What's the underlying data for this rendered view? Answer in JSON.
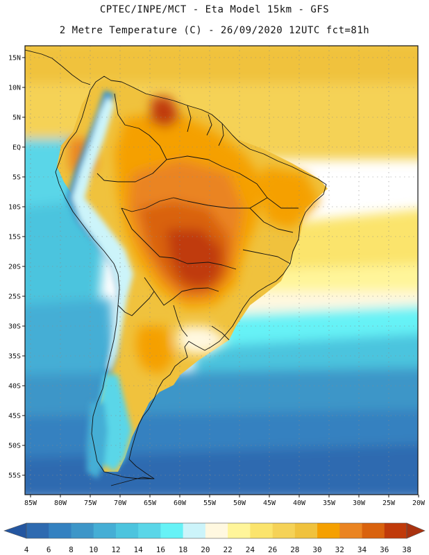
{
  "header": {
    "line1": "CPTEC/INPE/MCT -  Eta Model 15km - GFS",
    "line2": "2 Metre Temperature (C) - 26/09/2020 12UTC fct=81h"
  },
  "map": {
    "region": "South America",
    "variable": "2 Metre Temperature",
    "units": "C",
    "lat_ticks": [
      "15N",
      "10N",
      "5N",
      "EQ",
      "5S",
      "10S",
      "15S",
      "20S",
      "25S",
      "30S",
      "35S",
      "40S",
      "45S",
      "50S",
      "55S"
    ],
    "lon_ticks": [
      "85W",
      "80W",
      "75W",
      "70W",
      "65W",
      "60W",
      "55W",
      "50W",
      "45W",
      "40W",
      "35W",
      "30W",
      "25W",
      "20W"
    ],
    "extent": {
      "lon_min": -86,
      "lon_max": -20,
      "lat_min": -58,
      "lat_max": 17
    }
  },
  "legend": {
    "boundaries": [
      "4",
      "6",
      "8",
      "10",
      "12",
      "14",
      "16",
      "18",
      "20",
      "22",
      "24",
      "26",
      "28",
      "30",
      "32",
      "34",
      "36",
      "38"
    ],
    "colors": [
      "#2e6ab0",
      "#3481c0",
      "#3d96c8",
      "#45aed5",
      "#4cc4de",
      "#5ad6e8",
      "#66f2f6",
      "#ccf4fa",
      "#fff8e0",
      "#fff59a",
      "#fbe46c",
      "#f5d257",
      "#f0c23d",
      "#f5a000",
      "#ea8421",
      "#d9620d",
      "#c03a0a"
    ],
    "below_color": "#2456a0",
    "above_color": "#a9320f"
  }
}
